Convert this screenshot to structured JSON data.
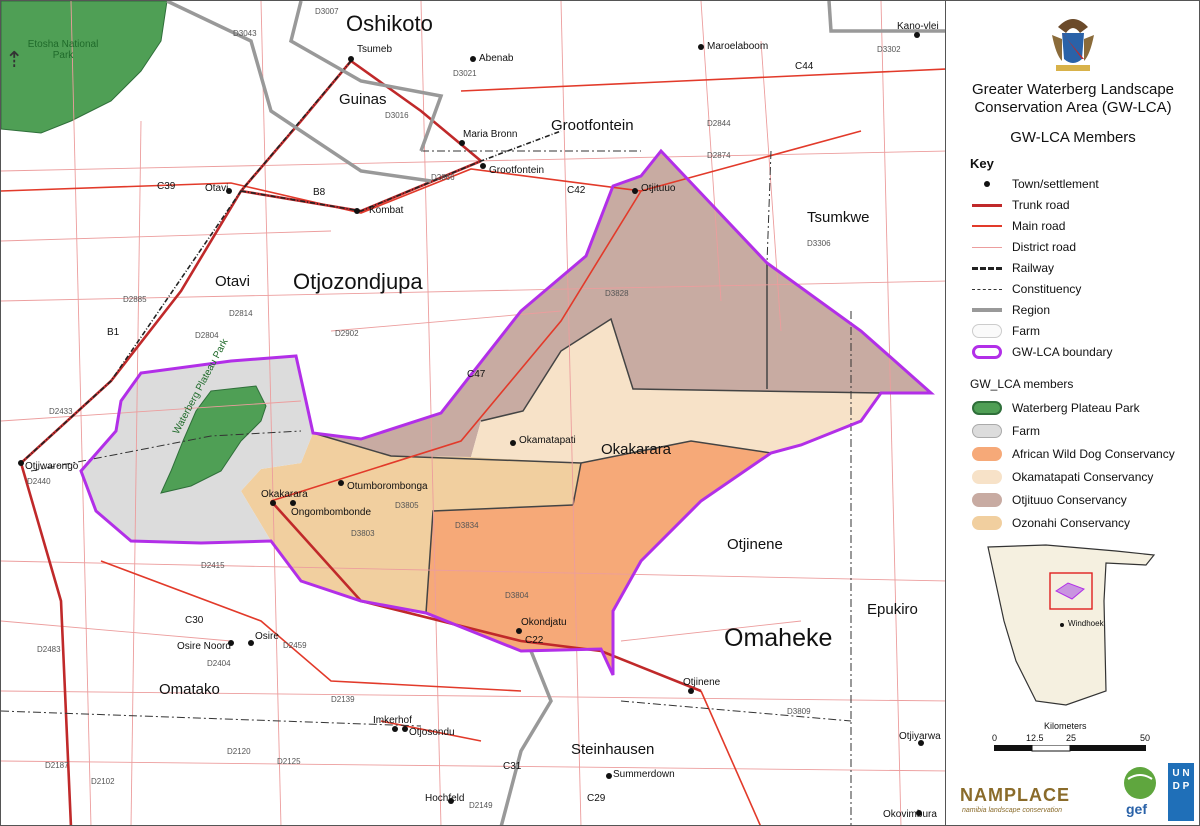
{
  "map": {
    "regions": [
      "Oshikoto",
      "Otjozondjupa",
      "Omaheke"
    ],
    "constituencies": [
      "Guinas",
      "Grootfontein",
      "Tsumkwe",
      "Otavi",
      "Otjinene",
      "Epukiro",
      "Omatako",
      "Steinhausen"
    ],
    "conservancy_labels": [
      "Okakarara"
    ],
    "towns": [
      "Tsumeb",
      "Abenab",
      "Maroelaboom",
      "Kano-vlei",
      "Maria Bronn",
      "Grootfontein",
      "Otavi",
      "Kombat",
      "Otjituuo",
      "Okamatapati",
      "Otjiwarongo",
      "Okakarara",
      "Otumborombonga",
      "Ongombombonde",
      "Okondjatu",
      "Osire Noord",
      "Osire",
      "Otjinene",
      "Imkerhof",
      "Otjosondu",
      "Summerdown",
      "Hochfeld",
      "Otjiyarwa",
      "Okovimbura"
    ],
    "parks": {
      "etosha": "Etosha National Park",
      "waterberg": "Waterberg Plateau Park"
    },
    "roads": [
      "C44",
      "C42",
      "C39",
      "B8",
      "B1",
      "C22",
      "C30",
      "C31",
      "C29",
      "C47"
    ],
    "districts": [
      "D3043",
      "D3007",
      "D3021",
      "D3016",
      "D3302",
      "D3306",
      "D2866",
      "D2844",
      "D2874",
      "D3828",
      "D3805",
      "D3803",
      "D3834",
      "D3804",
      "D2902",
      "D2814",
      "D2804",
      "D2885",
      "D2440",
      "D2433",
      "D2483",
      "D2404",
      "D2459",
      "D2125",
      "D2120",
      "D2139",
      "D2149",
      "D2102",
      "D2187",
      "D2415",
      "D3809"
    ]
  },
  "panel": {
    "title": "Greater Waterberg Landscape Conservation Area (GW-LCA)",
    "subtitle": "GW-LCA Members",
    "key_title": "Key",
    "key_items": [
      "Town/settlement",
      "Trunk road",
      "Main road",
      "District road",
      "Railway",
      "Constituency",
      "Region",
      "Farm",
      "GW-LCA boundary"
    ],
    "members_title": "GW_LCA members",
    "members": [
      "Waterberg Plateau Park",
      "Farm",
      "African Wild Dog Conservancy",
      "Okamatapati Conservancy",
      "Otjituuo Conservancy",
      "Ozonahi Conservancy"
    ],
    "inset": {
      "city": "Windhoek"
    },
    "scale": {
      "label": "Kilometers",
      "ticks": [
        "0",
        "12.5",
        "25",
        "50"
      ]
    },
    "logos": {
      "namplace": "NAMPLACE",
      "namplace_tag": "namibia landscape conservation",
      "gef": "gef",
      "undp": "U N D P"
    }
  },
  "colors": {
    "waterberg": "#4f9f55",
    "farm": "#dcdcdc",
    "wild_dog": "#f6a978",
    "okamatapati": "#f7e2c8",
    "otjituuo": "#c8aba2",
    "ozonahi": "#f1cf9f",
    "boundary": "#b22fe8",
    "trunk": "#c0292a",
    "main": "#e23a2a",
    "district": "#ec9d9d"
  }
}
